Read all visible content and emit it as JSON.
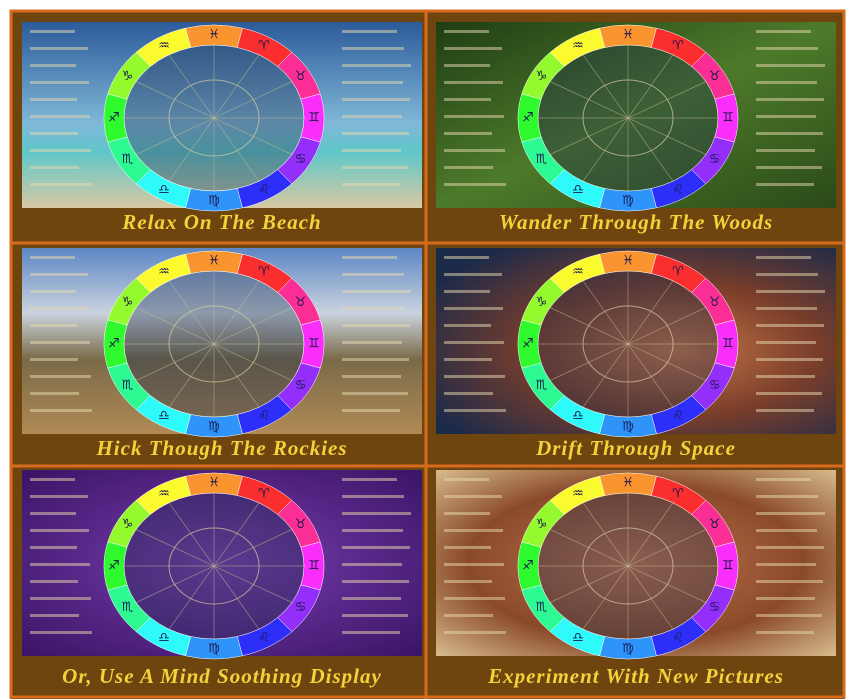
{
  "panels": [
    {
      "caption": "Relax On The Beach"
    },
    {
      "caption": "Wander Through The Woods"
    },
    {
      "caption": "Hick Though The Rockies"
    },
    {
      "caption": "Drift Through Space"
    },
    {
      "caption": "Or, Use A Mind Soothing Display"
    },
    {
      "caption": "Experiment With New Pictures"
    }
  ],
  "zodiac_signs": [
    "♈",
    "♉",
    "♊",
    "♋",
    "♌",
    "♍",
    "♎",
    "♏",
    "♐",
    "♑",
    "♒",
    "♓"
  ]
}
